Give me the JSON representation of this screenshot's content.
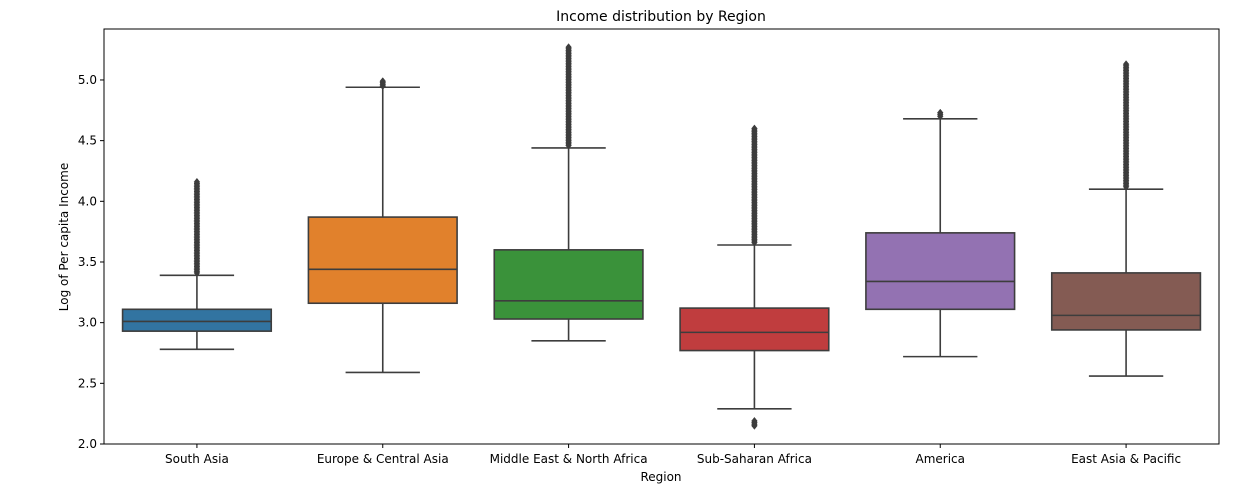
{
  "chart_data": {
    "type": "box",
    "title": "Income distribution by Region",
    "xlabel": "Region",
    "ylabel": "Log of Per capita Income",
    "ylim": [
      2.0,
      5.42
    ],
    "yticks": [
      "2.0",
      "2.5",
      "3.0",
      "3.5",
      "4.0",
      "4.5",
      "5.0"
    ],
    "grid": false,
    "categories": [
      "South Asia",
      "Europe & Central Asia",
      "Middle East & North Africa",
      "Sub-Saharan Africa",
      "America",
      "East Asia & Pacific"
    ],
    "boxes": [
      {
        "category": "South Asia",
        "whisker_low": 2.78,
        "q1": 2.93,
        "median": 3.01,
        "q3": 3.11,
        "whisker_high": 3.39,
        "outliers_high": [
          3.41,
          4.16
        ],
        "outliers_low": [],
        "color": "#3274a1"
      },
      {
        "category": "Europe & Central Asia",
        "whisker_low": 2.59,
        "q1": 3.16,
        "median": 3.44,
        "q3": 3.87,
        "whisker_high": 4.94,
        "outliers_high": [
          4.95,
          4.99
        ],
        "outliers_low": [],
        "color": "#e1812c"
      },
      {
        "category": "Middle East & North Africa",
        "whisker_low": 2.85,
        "q1": 3.03,
        "median": 3.18,
        "q3": 3.6,
        "whisker_high": 4.44,
        "outliers_high": [
          4.46,
          5.27
        ],
        "outliers_low": [],
        "color": "#3a923a"
      },
      {
        "category": "Sub-Saharan Africa",
        "whisker_low": 2.29,
        "q1": 2.77,
        "median": 2.92,
        "q3": 3.12,
        "whisker_high": 3.64,
        "outliers_high": [
          3.66,
          4.6
        ],
        "outliers_low": [
          2.15,
          2.19
        ],
        "color": "#c03d3e"
      },
      {
        "category": "America",
        "whisker_low": 2.72,
        "q1": 3.11,
        "median": 3.34,
        "q3": 3.74,
        "whisker_high": 4.68,
        "outliers_high": [
          4.7,
          4.73
        ],
        "outliers_low": [],
        "color": "#9372b2"
      },
      {
        "category": "East Asia & Pacific",
        "whisker_low": 2.56,
        "q1": 2.94,
        "median": 3.06,
        "q3": 3.41,
        "whisker_high": 4.1,
        "outliers_high": [
          4.12,
          5.13
        ],
        "outliers_low": [],
        "color": "#845b53"
      }
    ]
  }
}
